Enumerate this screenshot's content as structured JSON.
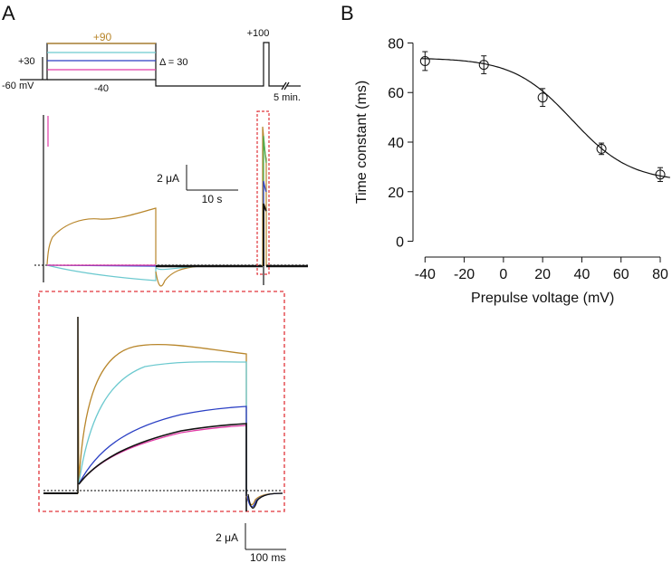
{
  "panel_a": {
    "label": "A",
    "protocol": {
      "v_plus90": "+90",
      "v_plus30": "+30",
      "v_hold": "-60 mV",
      "v_minus40": "-40",
      "delta": "Δ = 30",
      "v_plus100": "+100",
      "gap": "5 min."
    },
    "scale_top": {
      "current": "2 μA",
      "time": "10 s"
    },
    "scale_bottom": {
      "current": "2 μA",
      "time": "100 ms"
    }
  },
  "colors": {
    "plus90": "#b8862b",
    "plus60": "#6cc9cf",
    "plus30": "#2a3fc4",
    "zero": "#e23aa6",
    "minus40": "#111111",
    "inset_box": "#e0343a"
  },
  "chart_data": {
    "type": "scatter",
    "panel_label": "B",
    "title": "",
    "xlabel": "Prepulse voltage (mV)",
    "ylabel": "Time constant (ms)",
    "xlim": [
      -48,
      86
    ],
    "ylim": [
      -2,
      82
    ],
    "xticks": [
      -40,
      -20,
      0,
      20,
      40,
      60,
      80
    ],
    "yticks": [
      0,
      20,
      40,
      60,
      80
    ],
    "xtick_labels": [
      "-40",
      "-20",
      "0",
      "20",
      "40",
      "60",
      "80"
    ],
    "ytick_labels": [
      "0",
      "20",
      "40",
      "60",
      "80"
    ],
    "x": [
      -40,
      -10,
      20,
      50,
      80
    ],
    "y": [
      72.7,
      71.2,
      58.0,
      37.3,
      26.9
    ],
    "yerr": [
      3.8,
      3.6,
      3.6,
      2.3,
      2.8
    ],
    "fit": {
      "type": "boltzmann",
      "top": 74,
      "bottom": 24,
      "v_half": 35,
      "slope": 15
    },
    "grid": false,
    "legend": false
  }
}
